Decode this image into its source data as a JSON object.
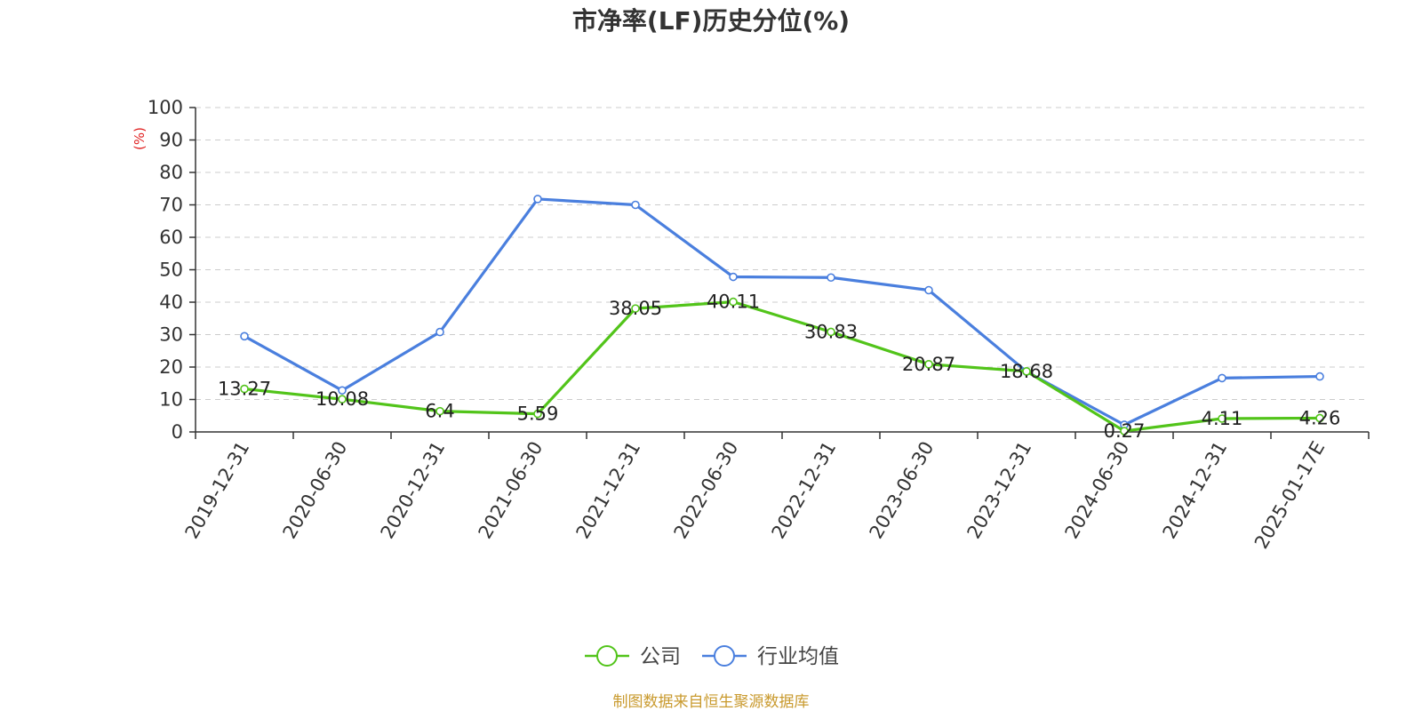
{
  "chart_data": {
    "type": "line",
    "title": "市净率(LF)历史分位(%)",
    "ylabel": "(%)",
    "xlabel": "",
    "ylim": [
      0,
      100
    ],
    "yticks": [
      0,
      10,
      20,
      30,
      40,
      50,
      60,
      70,
      80,
      90,
      100
    ],
    "grid": true,
    "legend_position": "bottom",
    "categories": [
      "2019-12-31",
      "2020-06-30",
      "2020-12-31",
      "2021-06-30",
      "2021-12-31",
      "2022-06-30",
      "2022-12-31",
      "2023-06-30",
      "2023-12-31",
      "2024-06-30",
      "2024-12-31",
      "2025-01-17E"
    ],
    "series": [
      {
        "name": "公司",
        "color": "#52c41a",
        "values": [
          13.27,
          10.08,
          6.4,
          5.59,
          38.05,
          40.11,
          30.83,
          20.87,
          18.68,
          0.27,
          4.11,
          4.26
        ],
        "labels": [
          "13.27",
          "10.08",
          "6.4",
          "5.59",
          "38.05",
          "40.11",
          "30.83",
          "20.87",
          "18.68",
          "0.27",
          "4.11",
          "4.26"
        ]
      },
      {
        "name": "行业均值",
        "color": "#4a7fde",
        "values": [
          29.5,
          12.8,
          30.8,
          71.8,
          70.0,
          47.8,
          47.6,
          43.7,
          18.6,
          2.2,
          16.6,
          17.1
        ]
      }
    ]
  },
  "source_text": "制图数据来自恒生聚源数据库"
}
